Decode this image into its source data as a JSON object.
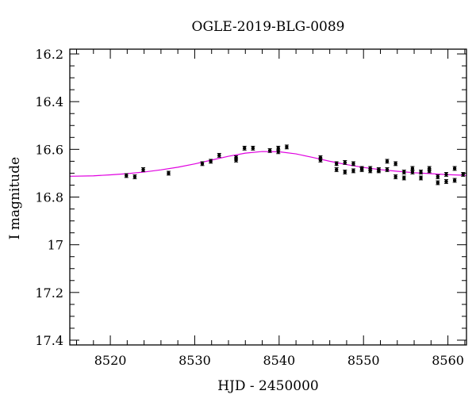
{
  "chart_data": {
    "type": "scatter",
    "title": "OGLE-2019-BLG-0089",
    "xlabel": "HJD - 2450000",
    "ylabel": "I magnitude",
    "xlim": [
      8515.2,
      8562.2
    ],
    "ylim": [
      17.42,
      16.18
    ],
    "y_inverted": true,
    "xticks": [
      8520,
      8530,
      8540,
      8550,
      8560
    ],
    "xtick_labels": [
      "8520",
      "8530",
      "8540",
      "8550",
      "8560"
    ],
    "yticks": [
      16.2,
      16.4,
      16.6,
      16.8,
      17.0,
      17.2,
      17.4
    ],
    "ytick_labels": [
      "16.2",
      "16.4",
      "16.6",
      "16.8",
      "17",
      "17.2",
      "17.4"
    ],
    "grid": false,
    "colors": {
      "data": "#000000",
      "model": "#e000e0",
      "axis": "#000000"
    },
    "series": [
      {
        "kind": "points",
        "error": 0.008,
        "x": [
          8521.9,
          8522.9,
          8523.9,
          8526.9,
          8530.9,
          8531.9,
          8532.9,
          8534.9,
          8534.9,
          8535.9,
          8536.9,
          8538.9,
          8539.9,
          8539.9,
          8540.9,
          8544.9,
          8544.9,
          8546.8,
          8546.8,
          8547.8,
          8547.8,
          8548.8,
          8548.8,
          8549.8,
          8549.8,
          8550.8,
          8550.8,
          8551.8,
          8551.8,
          8552.8,
          8552.8,
          8553.8,
          8553.8,
          8554.8,
          8554.8,
          8555.8,
          8555.8,
          8556.8,
          8556.8,
          8557.8,
          8557.8,
          8558.8,
          8558.8,
          8559.8,
          8559.8,
          8560.8,
          8560.8,
          8561.8
        ],
        "y": [
          16.71,
          16.715,
          16.685,
          16.7,
          16.66,
          16.65,
          16.625,
          16.635,
          16.645,
          16.595,
          16.595,
          16.605,
          16.595,
          16.61,
          16.59,
          16.635,
          16.645,
          16.66,
          16.685,
          16.655,
          16.695,
          16.66,
          16.69,
          16.68,
          16.685,
          16.68,
          16.69,
          16.685,
          16.69,
          16.65,
          16.685,
          16.66,
          16.715,
          16.695,
          16.72,
          16.68,
          16.695,
          16.695,
          16.72,
          16.68,
          16.69,
          16.715,
          16.74,
          16.705,
          16.735,
          16.68,
          16.73,
          16.705
        ]
      },
      {
        "kind": "model",
        "x": [
          8515.2,
          8518,
          8520,
          8522,
          8524,
          8526,
          8528,
          8530,
          8532,
          8534,
          8536,
          8538,
          8540,
          8542,
          8544,
          8546,
          8548,
          8550,
          8552,
          8554,
          8556,
          8558,
          8560,
          8562.2
        ],
        "y": [
          16.713,
          16.711,
          16.707,
          16.702,
          16.695,
          16.686,
          16.675,
          16.661,
          16.645,
          16.629,
          16.616,
          16.609,
          16.61,
          16.619,
          16.634,
          16.65,
          16.664,
          16.676,
          16.685,
          16.692,
          16.698,
          16.702,
          16.706,
          16.709
        ]
      }
    ]
  }
}
